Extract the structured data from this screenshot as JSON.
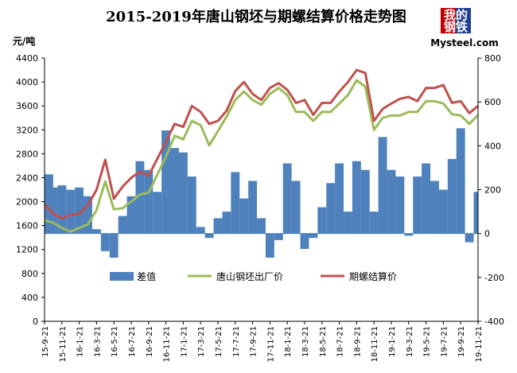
{
  "chart_data": {
    "type": "line",
    "title": "2015-2019年唐山钢坯与期螺结算价格走势图",
    "left_axis": {
      "unit": "元/吨",
      "ylim": [
        0,
        4400
      ],
      "ticks": [
        "0",
        "400",
        "800",
        "1200",
        "1600",
        "2000",
        "2400",
        "2800",
        "3200",
        "3600",
        "4000",
        "4400"
      ]
    },
    "right_axis": {
      "ylim": [
        -400,
        800
      ],
      "ticks": [
        "-400",
        "-200",
        "0",
        "200",
        "400",
        "600",
        "800"
      ]
    },
    "x_ticks": [
      "15-9-21",
      "15-11-21",
      "16-1-21",
      "16-3-21",
      "16-5-21",
      "16-7-21",
      "16-9-21",
      "16-11-21",
      "17-1-21",
      "17-3-21",
      "17-5-21",
      "17-7-21",
      "17-9-21",
      "17-11-21",
      "18-1-21",
      "18-3-21",
      "18-5-21",
      "18-7-21",
      "18-9-21",
      "18-11-21",
      "19-1-21",
      "19-3-21",
      "19-5-21",
      "19-7-21",
      "19-9-21",
      "19-11-21"
    ],
    "series": [
      {
        "name": "差值",
        "axis": "right",
        "kind": "area",
        "color": "#4F81BD",
        "x": [
          "15-9-21",
          "15-10-21",
          "15-11-21",
          "15-12-21",
          "16-1-21",
          "16-2-21",
          "16-3-21",
          "16-4-21",
          "16-5-21",
          "16-6-21",
          "16-7-21",
          "16-8-21",
          "16-9-21",
          "16-10-21",
          "16-11-21",
          "16-12-21",
          "17-1-21",
          "17-2-21",
          "17-3-21",
          "17-4-21",
          "17-5-21",
          "17-6-21",
          "17-7-21",
          "17-8-21",
          "17-9-21",
          "17-10-21",
          "17-11-21",
          "17-12-21",
          "18-1-21",
          "18-2-21",
          "18-3-21",
          "18-4-21",
          "18-5-21",
          "18-6-21",
          "18-7-21",
          "18-8-21",
          "18-9-21",
          "18-10-21",
          "18-11-21",
          "18-12-21",
          "19-1-21",
          "19-2-21",
          "19-3-21",
          "19-4-21",
          "19-5-21",
          "19-6-21",
          "19-7-21",
          "19-8-21",
          "19-9-21",
          "19-10-21",
          "19-11-21"
        ],
        "values": [
          270,
          210,
          220,
          200,
          210,
          170,
          20,
          -80,
          -110,
          80,
          170,
          330,
          290,
          190,
          470,
          390,
          370,
          260,
          30,
          -20,
          70,
          100,
          280,
          160,
          240,
          70,
          -110,
          -30,
          320,
          240,
          -70,
          -20,
          120,
          230,
          320,
          100,
          330,
          290,
          100,
          440,
          290,
          260,
          -10,
          260,
          320,
          240,
          200,
          340,
          480,
          -40,
          190
        ]
      },
      {
        "name": "唐山钢坯出厂价",
        "axis": "left",
        "kind": "line",
        "color": "#9BBB59",
        "x": [
          "15-9-21",
          "15-10-21",
          "15-11-21",
          "15-12-21",
          "16-1-21",
          "16-2-21",
          "16-3-21",
          "16-4-21",
          "16-5-21",
          "16-6-21",
          "16-7-21",
          "16-8-21",
          "16-9-21",
          "16-11-21",
          "16-12-21",
          "17-1-21",
          "17-2-21",
          "17-3-21",
          "17-4-21",
          "17-5-21",
          "17-6-21",
          "17-7-21",
          "17-8-21",
          "17-9-21",
          "17-10-21",
          "17-11-21",
          "17-12-21",
          "18-1-21",
          "18-2-21",
          "18-3-21",
          "18-4-21",
          "18-5-21",
          "18-6-21",
          "18-7-21",
          "18-8-21",
          "18-9-21",
          "18-10-21",
          "18-11-21",
          "18-12-21",
          "19-1-21",
          "19-2-21",
          "19-3-21",
          "19-4-21",
          "19-5-21",
          "19-6-21",
          "19-7-21",
          "19-8-21",
          "19-9-21",
          "19-10-21",
          "19-11-21"
        ],
        "values": [
          1690,
          1650,
          1560,
          1500,
          1560,
          1620,
          1860,
          2340,
          1870,
          1890,
          2000,
          2120,
          2150,
          2750,
          3100,
          3040,
          3350,
          3280,
          2940,
          3180,
          3420,
          3700,
          3840,
          3700,
          3620,
          3800,
          3900,
          3780,
          3500,
          3500,
          3350,
          3500,
          3500,
          3640,
          3780,
          4030,
          3920,
          3200,
          3400,
          3440,
          3440,
          3500,
          3500,
          3680,
          3680,
          3640,
          3460,
          3440,
          3300,
          3450
        ]
      },
      {
        "name": "期螺结算价",
        "axis": "left",
        "kind": "line",
        "color": "#C0504D",
        "x": [
          "15-9-21",
          "15-10-21",
          "15-11-21",
          "15-12-21",
          "16-1-21",
          "16-2-21",
          "16-3-21",
          "16-4-21",
          "16-5-21",
          "16-6-21",
          "16-7-21",
          "16-8-21",
          "16-9-21",
          "16-11-21",
          "16-12-21",
          "17-1-21",
          "17-2-21",
          "17-3-21",
          "17-4-21",
          "17-5-21",
          "17-6-21",
          "17-7-21",
          "17-8-21",
          "17-9-21",
          "17-10-21",
          "17-11-21",
          "17-12-21",
          "18-1-21",
          "18-2-21",
          "18-3-21",
          "18-4-21",
          "18-5-21",
          "18-6-21",
          "18-7-21",
          "18-8-21",
          "18-9-21",
          "18-10-21",
          "18-11-21",
          "18-12-21",
          "19-1-21",
          "19-2-21",
          "19-3-21",
          "19-4-21",
          "19-5-21",
          "19-6-21",
          "19-7-21",
          "19-8-21",
          "19-9-21",
          "19-10-21",
          "19-11-21"
        ],
        "values": [
          1950,
          1800,
          1720,
          1780,
          1800,
          1940,
          2200,
          2700,
          2050,
          2250,
          2400,
          2500,
          2430,
          3000,
          3300,
          3250,
          3600,
          3500,
          3300,
          3350,
          3520,
          3850,
          4000,
          3800,
          3700,
          3900,
          3980,
          3870,
          3650,
          3700,
          3450,
          3650,
          3650,
          3840,
          4000,
          4200,
          4150,
          3350,
          3550,
          3640,
          3720,
          3750,
          3680,
          3900,
          3900,
          3950,
          3650,
          3680,
          3480,
          3600
        ]
      }
    ],
    "legend_placement": "bottom-center",
    "grid": false
  },
  "watermark": {
    "line1": "我的",
    "line2": "钢铁",
    "domain": "Mysteel.com",
    "colors": [
      "#C00000",
      "#1F3F8F"
    ]
  }
}
